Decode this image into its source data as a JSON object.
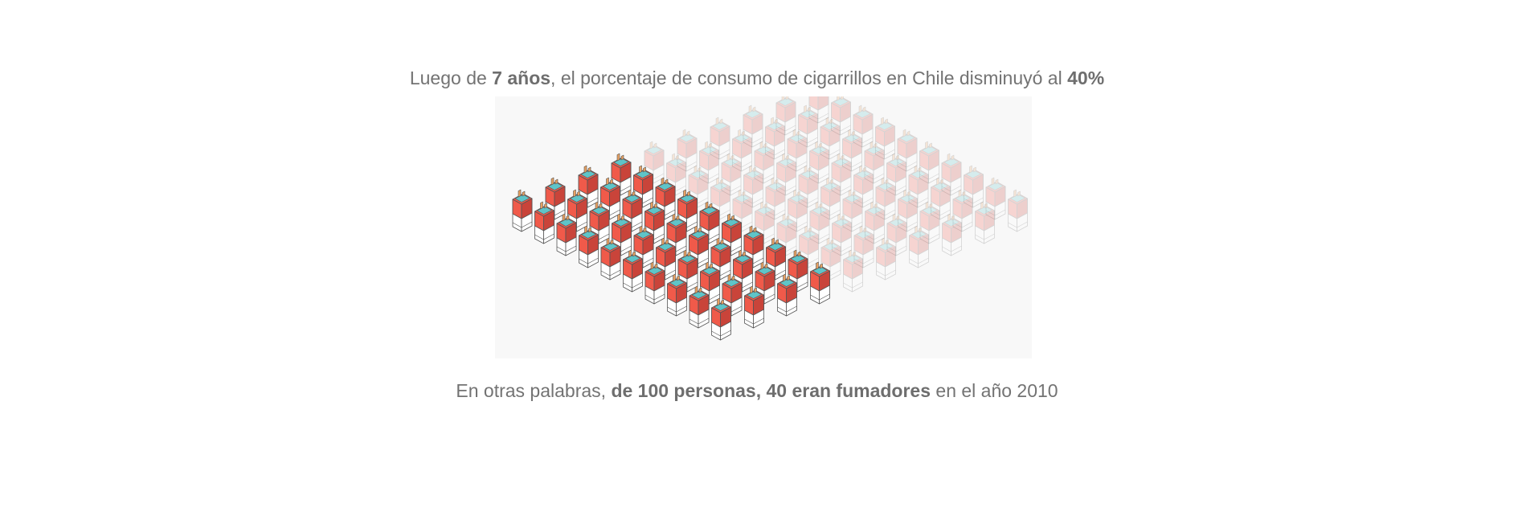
{
  "header": {
    "part1": "Luego de ",
    "bold1": "7 años",
    "part2": ", el porcentaje de consumo de cigarrillos en Chile disminuyó al ",
    "bold2": "40%"
  },
  "footer": {
    "part1": "En otras palabras, ",
    "bold1": "de 100 personas, 40 eran fumadores",
    "part2": " en el año 2010"
  },
  "figure": {
    "icon": "cigarette-pack-icon",
    "total": 100,
    "highlighted": 40,
    "colors": {
      "pack_red": "#f05a4a",
      "pack_red_dark": "#c9443a",
      "pack_white": "#ffffff",
      "foil_teal": "#5fc4c8",
      "filter_orange": "#e8a060",
      "outline": "#555555"
    }
  }
}
